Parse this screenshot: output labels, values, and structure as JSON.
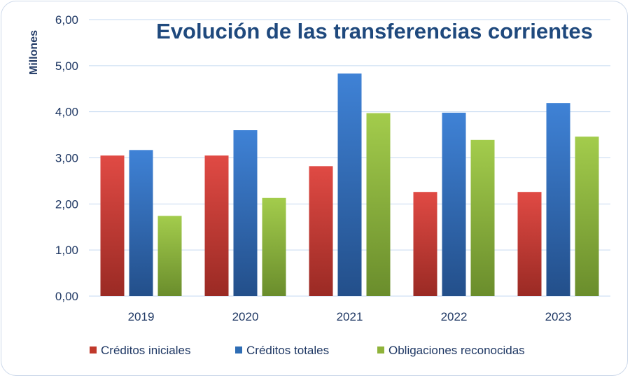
{
  "chart_data": {
    "type": "bar",
    "title": "Evolución de las transferencias corrientes",
    "xlabel": "",
    "ylabel": "Millones",
    "ylim": [
      0,
      6
    ],
    "yticks": [
      "0,00",
      "1,00",
      "2,00",
      "3,00",
      "4,00",
      "5,00",
      "6,00"
    ],
    "categories": [
      "2019",
      "2020",
      "2021",
      "2022",
      "2023"
    ],
    "legend_position": "bottom",
    "grid": true,
    "series": [
      {
        "name": "Créditos iniciales",
        "color": "#c0392b",
        "values": [
          3.05,
          3.05,
          2.82,
          2.26,
          2.26
        ]
      },
      {
        "name": "Créditos totales",
        "color": "#2e6db4",
        "values": [
          3.17,
          3.6,
          4.83,
          3.98,
          4.19
        ]
      },
      {
        "name": "Obligaciones reconocidas",
        "color": "#8fb33a",
        "values": [
          1.74,
          2.13,
          3.97,
          3.39,
          3.46
        ]
      }
    ]
  }
}
